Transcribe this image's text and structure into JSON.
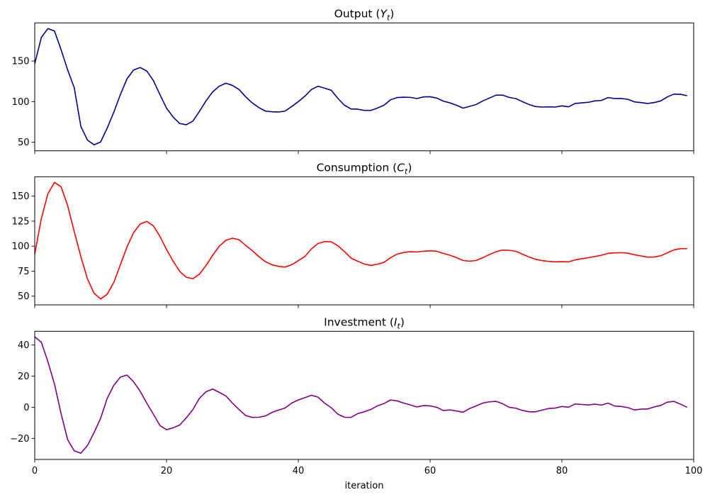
{
  "chart_data": [
    {
      "type": "line",
      "title": "Output (Y_t)",
      "title_parts": {
        "prefix": "Output (",
        "symbol": "Y",
        "sub": "t",
        "suffix": ")"
      },
      "color": "#00008b",
      "xlim": [
        0,
        100
      ],
      "ylim": [
        39.4,
        197
      ],
      "xticks": [
        0,
        20,
        40,
        60,
        80,
        100
      ],
      "xtick_labels_shown": false,
      "yticks": [
        50,
        100,
        150
      ],
      "grid": false,
      "values": [
        146.5,
        179,
        190,
        187,
        164,
        139,
        117,
        69.5,
        52.6,
        46.8,
        50.3,
        67.4,
        87,
        108.7,
        128,
        139,
        142,
        137.8,
        126,
        108.7,
        92,
        81,
        73,
        71.5,
        76,
        88,
        101,
        112,
        119,
        122.7,
        120,
        115,
        106,
        98.5,
        92.7,
        88.4,
        87.5,
        87.2,
        88.4,
        94,
        100,
        106.7,
        115,
        119,
        116.6,
        114,
        104,
        95.6,
        91,
        90.7,
        89.2,
        89.2,
        92,
        95.6,
        102.3,
        105,
        105.5,
        105.2,
        103.8,
        105.8,
        106,
        104.4,
        100.6,
        98.5,
        95.6,
        92,
        94.2,
        96.5,
        100.9,
        104.4,
        108,
        108,
        105.2,
        103.8,
        100,
        96.5,
        93.9,
        93.3,
        93.6,
        93.3,
        94.8,
        93.6,
        97.7,
        98.5,
        99.1,
        100.9,
        101.5,
        105,
        103.8,
        103.8,
        102.9,
        99.7,
        98.8,
        97.7,
        98.8,
        100.9,
        105.8,
        109.3,
        109,
        107.3
      ]
    },
    {
      "type": "line",
      "title": "Consumption (C_t)",
      "title_parts": {
        "prefix": "Consumption (",
        "symbol": "C",
        "sub": "t",
        "suffix": ")"
      },
      "color": "#ff0000",
      "xlim": [
        0,
        100
      ],
      "ylim": [
        41.3,
        169.4
      ],
      "xticks": [
        0,
        20,
        40,
        60,
        80,
        100
      ],
      "xtick_labels_shown": false,
      "yticks": [
        50,
        75,
        100,
        125,
        150
      ],
      "grid": false,
      "values": [
        92,
        127.5,
        152.4,
        163.7,
        159.5,
        140.5,
        114.5,
        89.7,
        67.3,
        53,
        47.2,
        51.9,
        63.7,
        81.4,
        99.2,
        113.4,
        122.1,
        124.7,
        120.4,
        109.8,
        96.8,
        85,
        74.8,
        68.9,
        67.5,
        72,
        80.7,
        90.9,
        99.9,
        105.8,
        107.9,
        106.5,
        100.8,
        95.6,
        89.7,
        84.5,
        81.4,
        79.8,
        79.1,
        81.4,
        85.5,
        89.7,
        97.3,
        102.7,
        104.6,
        104.4,
        100.4,
        94.6,
        88.1,
        85,
        82.2,
        80.7,
        81.9,
        83.8,
        88.5,
        92,
        93.7,
        94.4,
        94.2,
        94.9,
        95.4,
        94.9,
        92.8,
        90.9,
        88.5,
        85.7,
        85,
        85.7,
        88.5,
        91.6,
        94.4,
        96.1,
        95.8,
        94.9,
        92,
        89.2,
        86.9,
        85.5,
        84.8,
        84.3,
        84.5,
        84.3,
        86.2,
        87.4,
        88.5,
        89.7,
        90.9,
        92.8,
        93.3,
        93.5,
        93,
        91.4,
        90.2,
        89,
        89.2,
        90.4,
        93.3,
        96.3,
        97.5,
        97.5
      ]
    },
    {
      "type": "line",
      "title": "Investment (I_t)",
      "title_parts": {
        "prefix": "Investment (",
        "symbol": "I",
        "sub": "t",
        "suffix": ")"
      },
      "color": "#800080",
      "xlim": [
        0,
        100
      ],
      "ylim": [
        -33.5,
        48.8
      ],
      "xticks": [
        0,
        20,
        40,
        60,
        80,
        100
      ],
      "xtick_labels_shown": true,
      "xlabel": "iteration",
      "yticks": [
        -20,
        0,
        20,
        40
      ],
      "grid": false,
      "values": [
        45.3,
        41.8,
        29.3,
        14.9,
        -4.1,
        -20.8,
        -28,
        -29.5,
        -24.6,
        -16.3,
        -7.1,
        5.8,
        14.1,
        19.4,
        20.7,
        16.4,
        10.3,
        2.7,
        -4.4,
        -11.7,
        -14.4,
        -13.2,
        -11.4,
        -6.8,
        -1.5,
        5.8,
        10,
        11.7,
        9.6,
        7.3,
        2.7,
        -1.4,
        -5.3,
        -6.5,
        -6.4,
        -5.6,
        -3.3,
        -1.8,
        -0.5,
        2.7,
        4.7,
        6.2,
        7.7,
        6.5,
        2.6,
        -0.3,
        -4.4,
        -6.4,
        -6.5,
        -4.1,
        -2.9,
        -1.4,
        0.9,
        2.4,
        4.7,
        4.1,
        2.7,
        1.5,
        0.2,
        1.1,
        0.9,
        0,
        -2.1,
        -1.7,
        -2.4,
        -3.2,
        -0.8,
        0.9,
        2.7,
        3.5,
        3.8,
        2.3,
        0,
        -0.6,
        -2,
        -2.9,
        -2.9,
        -1.8,
        -0.8,
        -0.5,
        0.5,
        0,
        2.1,
        1.8,
        1.5,
        2,
        1.4,
        2.7,
        0.8,
        0.5,
        -0.2,
        -1.7,
        -1.2,
        -1.1,
        0.2,
        1.2,
        3.3,
        3.8,
        2,
        0
      ]
    }
  ]
}
